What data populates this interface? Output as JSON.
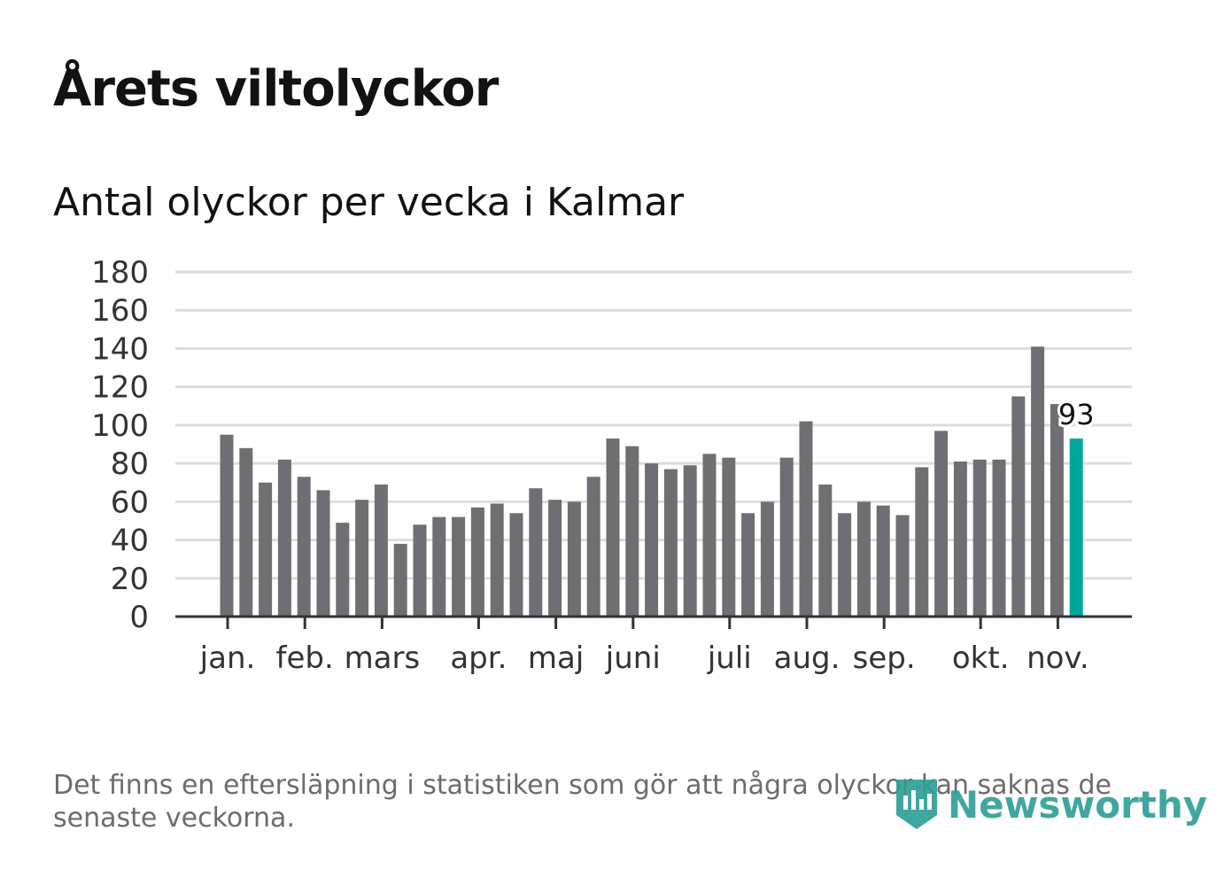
{
  "title": "Årets viltolyckor",
  "subtitle": "Antal olyckor per vecka i Kalmar",
  "note": "Det finns en eftersläpning i statistiken som gör att några olyckor kan saknas de senaste veckorna.",
  "logo": "Newsworthy",
  "colors": {
    "bar": "#6f6e74",
    "highlight": "#00a69c",
    "grid": "#dddddd",
    "axis": "#333333"
  },
  "chart_data": {
    "type": "bar",
    "title": "Antal olyckor per vecka i Kalmar",
    "xlabel": "",
    "ylabel": "",
    "ylim": [
      0,
      180
    ],
    "yticks": [
      0,
      20,
      40,
      60,
      80,
      100,
      120,
      140,
      160,
      180
    ],
    "grid": true,
    "values": [
      95,
      88,
      70,
      82,
      73,
      66,
      49,
      61,
      69,
      38,
      48,
      52,
      52,
      57,
      59,
      54,
      67,
      61,
      60,
      73,
      93,
      89,
      80,
      77,
      79,
      85,
      83,
      54,
      60,
      83,
      102,
      69,
      54,
      60,
      58,
      53,
      78,
      97,
      81,
      82,
      82,
      115,
      141,
      111,
      93
    ],
    "highlight_index": 44,
    "data_label": "93",
    "month_ticks": [
      {
        "label": "jan.",
        "week": 0
      },
      {
        "label": "feb.",
        "week": 4
      },
      {
        "label": "mars",
        "week": 8
      },
      {
        "label": "apr.",
        "week": 13
      },
      {
        "label": "maj",
        "week": 17
      },
      {
        "label": "juni",
        "week": 21
      },
      {
        "label": "juli",
        "week": 26
      },
      {
        "label": "aug.",
        "week": 30
      },
      {
        "label": "sep.",
        "week": 34
      },
      {
        "label": "okt.",
        "week": 39
      },
      {
        "label": "nov.",
        "week": 43
      }
    ]
  }
}
